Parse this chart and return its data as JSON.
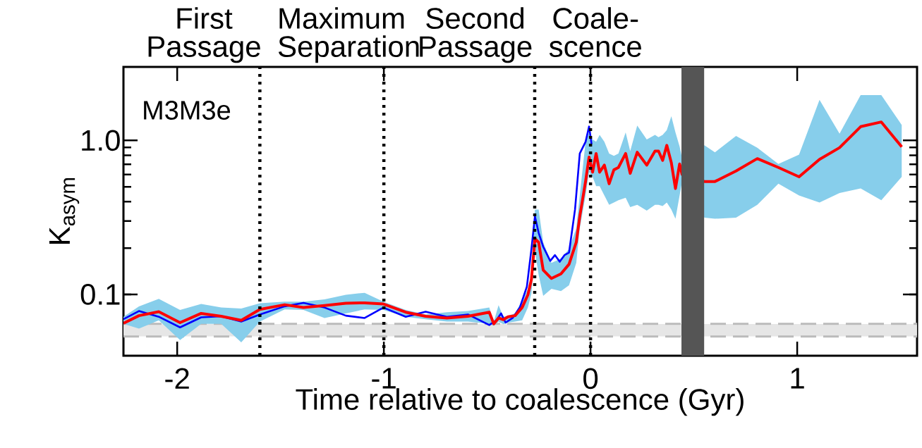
{
  "chart_data": {
    "type": "line",
    "xlabel": "Time relative to coalescence (Gyr)",
    "ylabel": "K$_{asym}$",
    "annotations": [
      "M3M3e"
    ],
    "xlim": [
      -2.26,
      1.58
    ],
    "ylim": [
      0.04,
      3
    ],
    "log": "y",
    "xticks": [
      -2,
      -1,
      0,
      1
    ],
    "yticks": [
      {
        "value": 0.1,
        "label": "0.1"
      },
      {
        "value": 1,
        "label": "1.0"
      }
    ],
    "bands": [
      {
        "axis": "y",
        "from": 0.0533,
        "to": 0.0644,
        "color": "#e6e6e6"
      },
      {
        "axis": "x",
        "from": 0.44,
        "to": 0.55,
        "color": "#555555"
      }
    ],
    "ref_lines": [
      {
        "axis": "y",
        "value": 0.0533,
        "color": "#bbbbbb",
        "line_style": "dashed"
      },
      {
        "axis": "y",
        "value": 0.0644,
        "color": "#bbbbbb",
        "line_style": "dashed"
      },
      {
        "axis": "x",
        "value": -1.6,
        "label": "First Passage",
        "color": "#000000",
        "line_style": "dotted"
      },
      {
        "axis": "x",
        "value": -1.0,
        "label": "Maximum Separation",
        "color": "#000000",
        "line_style": "dotted"
      },
      {
        "axis": "x",
        "value": -0.27,
        "label": "Second Passage",
        "color": "#000000",
        "line_style": "dotted"
      },
      {
        "axis": "x",
        "value": 0,
        "label": "Coale-scence",
        "color": "#000000",
        "line_style": "dotted"
      }
    ],
    "series": [
      {
        "color": "#0000ff",
        "x": [
          -2.26,
          -2.185,
          -2.089,
          -1.986,
          -1.884,
          -1.787,
          -1.69,
          -1.6,
          -1.48,
          -1.389,
          -1.287,
          -1.184,
          -1.093,
          -1.002,
          -0.894,
          -0.798,
          -0.695,
          -0.593,
          -0.49,
          -0.456,
          -0.433,
          -0.411,
          -0.377,
          -0.342,
          -0.308,
          -0.286,
          -0.269,
          -0.251,
          -0.229,
          -0.195,
          -0.172,
          -0.149,
          -0.126,
          -0.104,
          -0.075,
          -0.052,
          -0.024,
          -0.007,
          0.005
        ],
        "values": [
          0.069,
          0.078,
          0.0716,
          0.0611,
          0.071,
          0.0721,
          0.0667,
          0.0741,
          0.0837,
          0.0882,
          0.0822,
          0.0728,
          0.0703,
          0.0822,
          0.0716,
          0.0772,
          0.0716,
          0.0741,
          0.0633,
          0.0679,
          0.0753,
          0.0656,
          0.0703,
          0.0822,
          0.1125,
          0.197,
          0.321,
          0.251,
          0.204,
          0.165,
          0.18,
          0.163,
          0.18,
          0.187,
          0.356,
          0.822,
          0.979,
          1.23,
          0.946
        ]
      },
      {
        "color": "#ff0000",
        "x": [
          -2.26,
          -2.185,
          -2.089,
          -1.986,
          -1.884,
          -1.787,
          -1.69,
          -1.6,
          -1.48,
          -1.389,
          -1.287,
          -1.184,
          -1.093,
          -1.002,
          -0.894,
          -0.798,
          -0.695,
          -0.593,
          -0.49,
          -0.468,
          -0.445,
          -0.422,
          -0.399,
          -0.365,
          -0.331,
          -0.303,
          -0.286,
          -0.269,
          -0.251,
          -0.229,
          -0.189,
          -0.143,
          -0.104,
          -0.069,
          -0.052,
          -0.024,
          -0.007,
          0.01,
          0.027,
          0.044,
          0.067,
          0.09,
          0.113,
          0.135,
          0.17,
          0.192,
          0.226,
          0.272,
          0.312,
          0.329,
          0.349,
          0.369,
          0.391,
          0.411,
          0.431,
          0.443,
          0.551,
          0.602,
          0.704,
          0.807,
          0.909,
          1.009,
          1.108,
          1.205,
          1.307,
          1.407,
          1.506
        ],
        "values": [
          0.065,
          0.0728,
          0.0772,
          0.0656,
          0.0753,
          0.0721,
          0.0679,
          0.08,
          0.0857,
          0.0822,
          0.0846,
          0.0876,
          0.0882,
          0.0867,
          0.0767,
          0.0721,
          0.0703,
          0.0721,
          0.0767,
          0.0644,
          0.0703,
          0.0686,
          0.0716,
          0.0728,
          0.0822,
          0.0995,
          0.125,
          0.23,
          0.218,
          0.144,
          0.127,
          0.136,
          0.157,
          0.218,
          0.321,
          0.541,
          0.78,
          0.622,
          0.822,
          0.622,
          0.691,
          0.523,
          0.644,
          0.667,
          0.822,
          0.611,
          0.838,
          0.691,
          0.852,
          0.852,
          0.741,
          0.929,
          0.716,
          0.487,
          0.703,
          0.601,
          0.541,
          0.541,
          0.633,
          0.762,
          0.667,
          0.58,
          0.754,
          0.897,
          1.228,
          1.317,
          0.907
        ],
        "upper": [
          0.0716,
          0.0837,
          0.0936,
          0.0794,
          0.0867,
          0.0822,
          0.081,
          0.0876,
          0.0898,
          0.0898,
          0.0929,
          0.0995,
          0.1025,
          0.0898,
          0.0794,
          0.074,
          0.0767,
          0.078,
          0.0823,
          0.0667,
          0.0852,
          0.0715,
          0.0728,
          0.0754,
          0.0913,
          0.1087,
          0.134,
          0.356,
          0.356,
          0.218,
          0.16,
          0.171,
          0.197,
          0.269,
          0.439,
          0.979,
          1.126,
          1.014,
          0.979,
          1.087,
          0.979,
          0.822,
          0.794,
          0.822,
          1.126,
          0.852,
          1.25,
          1.014,
          1.087,
          1.05,
          1.087,
          1.166,
          1.437,
          1.126,
          0.913,
          0.767,
          0.929,
          0.837,
          1.069,
          0.897,
          0.703,
          0.808,
          1.835,
          1.106,
          1.967,
          1.967,
          1.259
        ],
        "lower": [
          0.0644,
          0.06,
          0.0679,
          0.0505,
          0.0644,
          0.0644,
          0.0488,
          0.0667,
          0.08,
          0.0794,
          0.0703,
          0.0753,
          0.08,
          0.0794,
          0.0716,
          0.069,
          0.0667,
          0.0667,
          0.0644,
          0.0626,
          0.0667,
          0.064,
          0.0656,
          0.0667,
          0.0679,
          0.0823,
          0.1014,
          0.19,
          0.134,
          0.0979,
          0.1087,
          0.105,
          0.1146,
          0.16,
          0.269,
          0.439,
          0.622,
          0.58,
          0.505,
          0.505,
          0.439,
          0.382,
          0.395,
          0.409,
          0.424,
          0.369,
          0.382,
          0.35,
          0.382,
          0.382,
          0.375,
          0.395,
          0.356,
          0.31,
          0.439,
          0.541,
          0.315,
          0.31,
          0.315,
          0.382,
          0.523,
          0.439,
          0.395,
          0.455,
          0.488,
          0.409,
          0.58
        ]
      }
    ]
  }
}
